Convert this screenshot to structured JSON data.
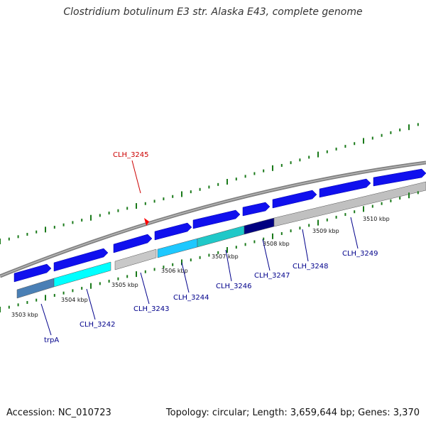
{
  "title": "Clostridium botulinum E3 str. Alaska E43, complete genome",
  "footer": {
    "accession": "Accession: NC_010723",
    "summary": "Topology: circular; Length: 3,659,644 bp; Genes: 3,370"
  },
  "colors": {
    "backbone": "#808080",
    "tick": "#1a7a1a",
    "gene_forward": "#1010ee",
    "highlight": "#ff0000",
    "forward_label": "#00008b",
    "highlight_label": "#cc0000"
  },
  "kbp_labels": [
    "3503 kbp",
    "3504 kbp",
    "3505 kbp",
    "3506 kbp",
    "3507 kbp",
    "3508 kbp",
    "3509 kbp",
    "3510 kbp"
  ],
  "genes": [
    {
      "name": "trpA",
      "color": "#4a7fb5",
      "highlight": false
    },
    {
      "name": "CLH_3242",
      "color": "#00ffff",
      "highlight": false
    },
    {
      "name": "CLH_3243",
      "color": "#c8c8c8",
      "highlight": false
    },
    {
      "name": "CLH_3244",
      "color": "#1ec8ff",
      "highlight": false
    },
    {
      "name": "CLH_3245",
      "color": "#ff0000",
      "highlight": true
    },
    {
      "name": "CLH_3246",
      "color": "#20c8c8",
      "highlight": false
    },
    {
      "name": "CLH_3247",
      "color": "#000080",
      "highlight": false
    },
    {
      "name": "CLH_3248",
      "color": "#c0c0c0",
      "highlight": false
    },
    {
      "name": "CLH_3249",
      "color": "#c0c0c0",
      "highlight": false
    }
  ]
}
